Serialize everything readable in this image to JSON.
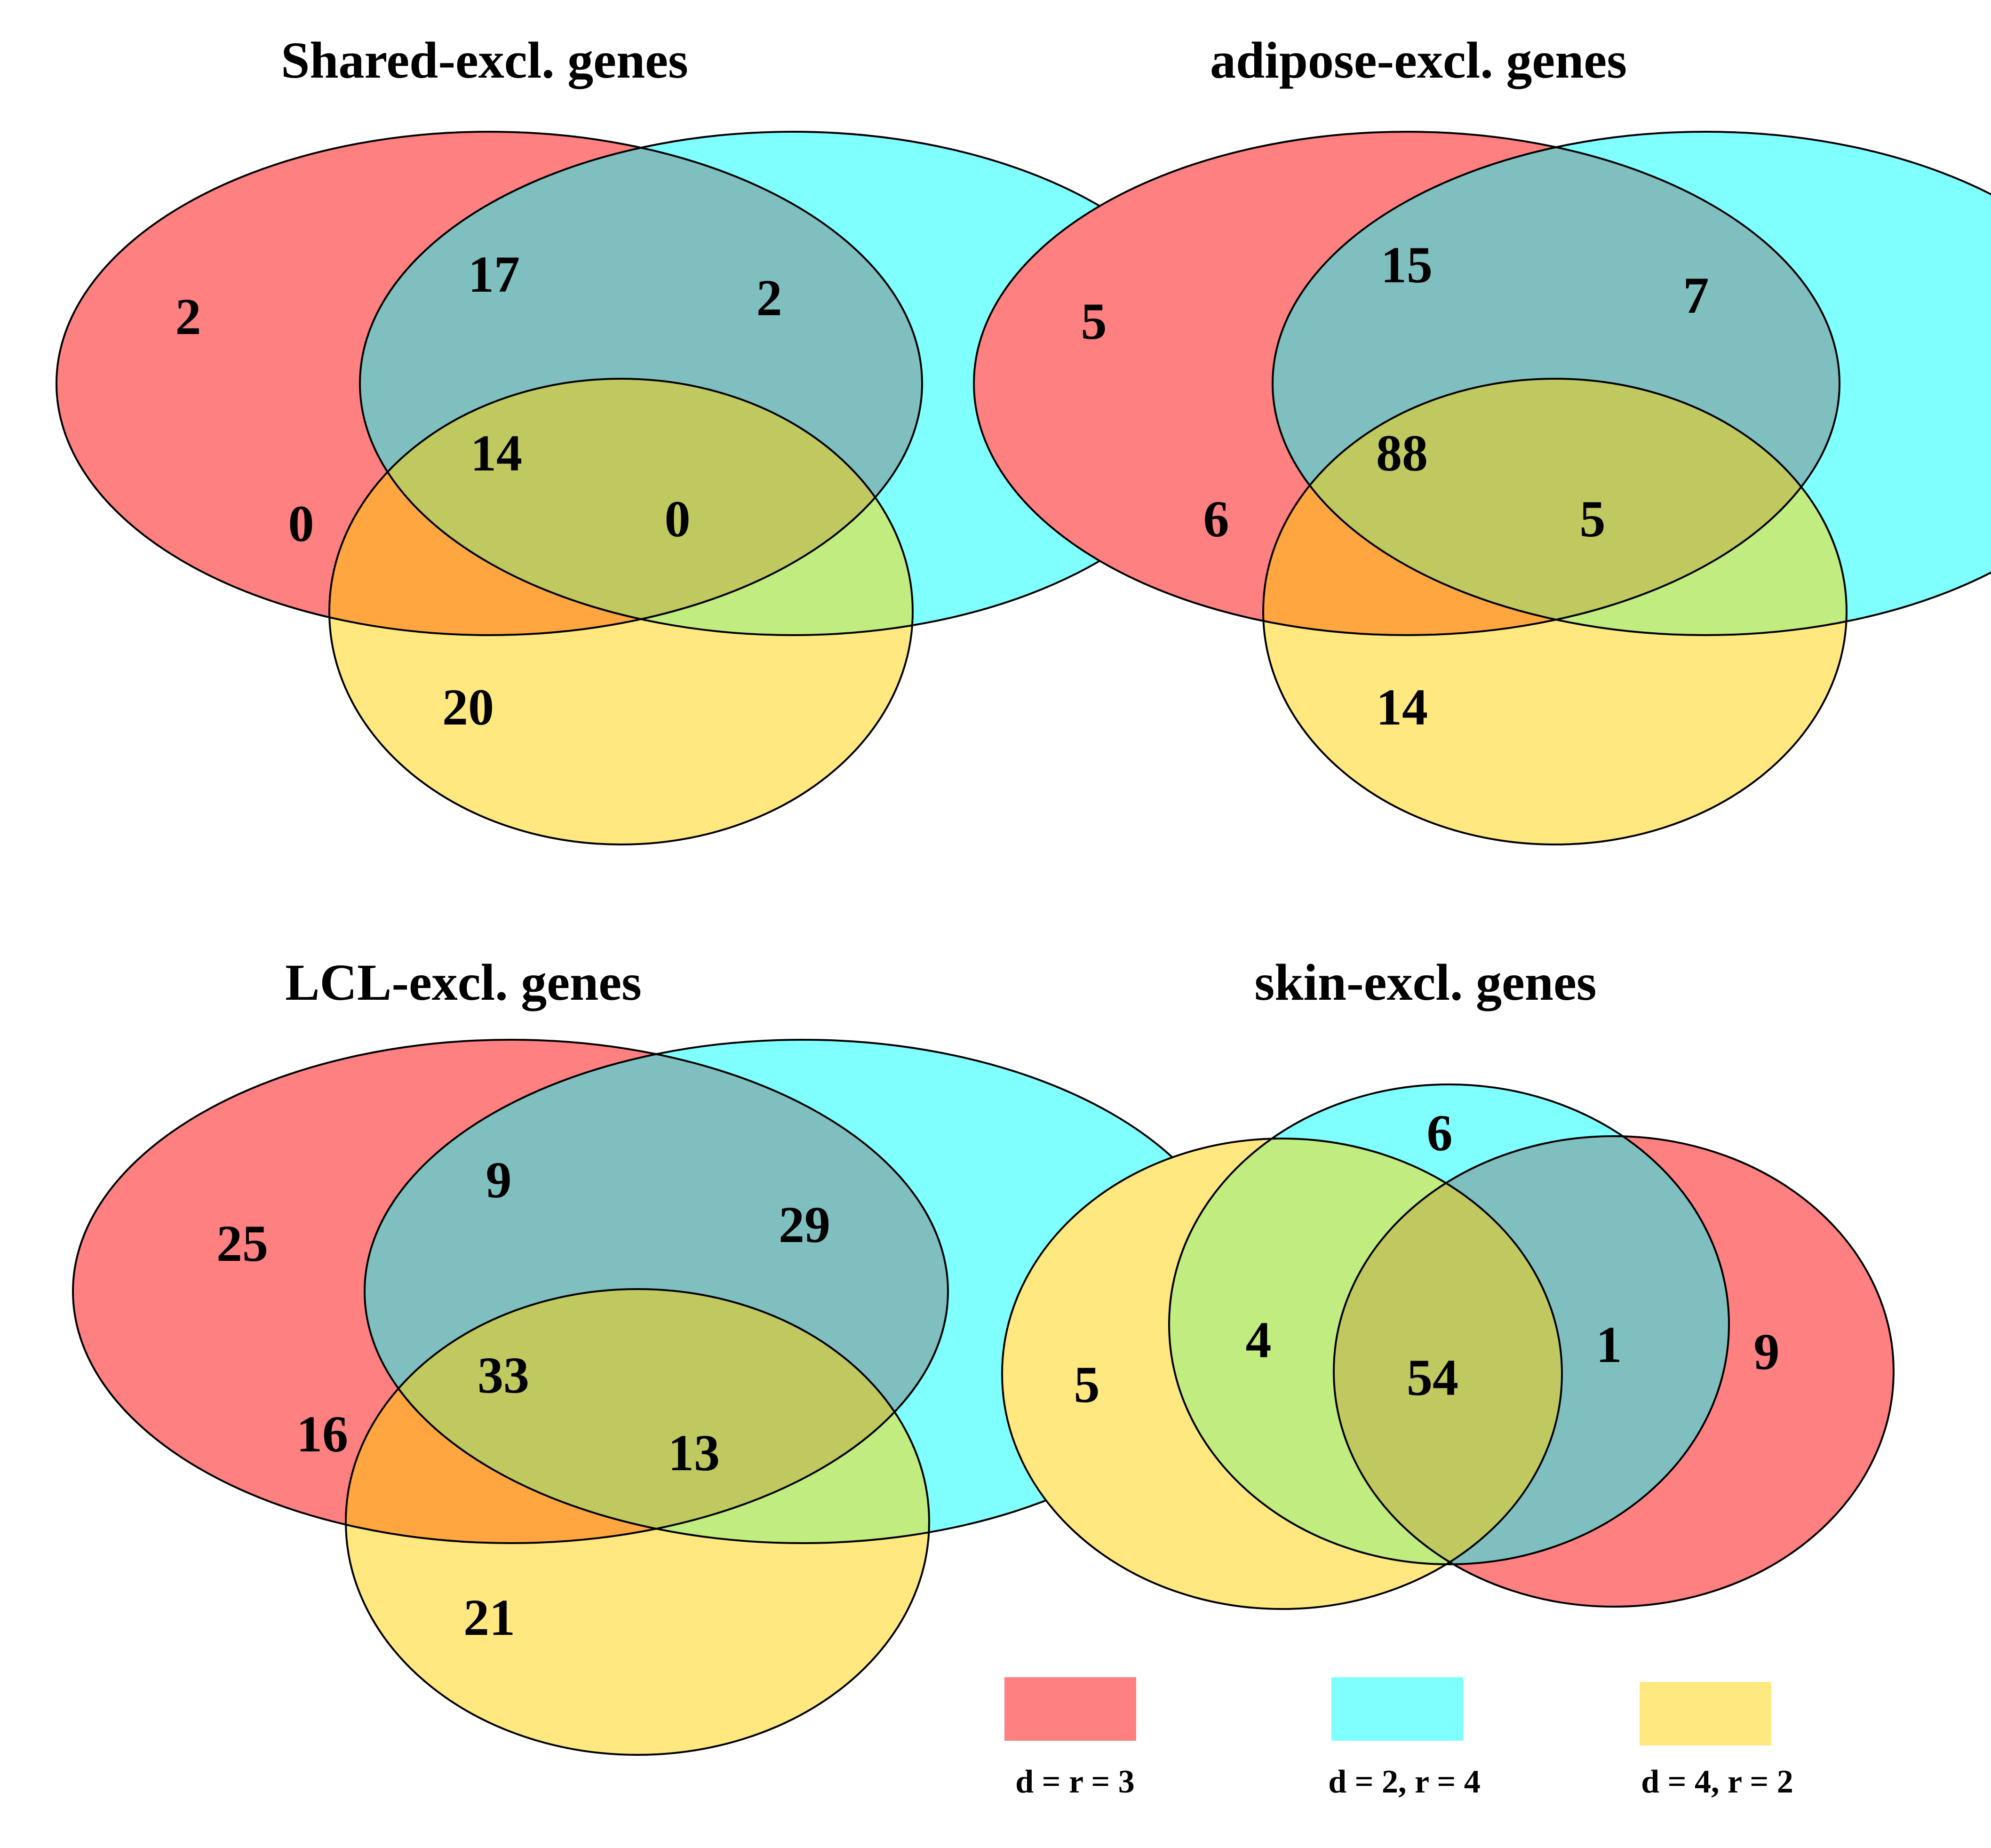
{
  "colors": {
    "red": "#ff8080",
    "cyan": "#80ffff",
    "yellow": "#ffe880",
    "red_cyan": "#80bfbf",
    "red_yellow": "#ffa640",
    "cyan_yellow": "#c0ec80",
    "all": "#c0c860"
  },
  "legend": [
    {
      "color": "red",
      "label": "d = r = 3"
    },
    {
      "color": "cyan",
      "label": "d = 2, r = 4"
    },
    {
      "color": "yellow",
      "label": "d = 4, r = 2"
    }
  ],
  "diagrams": [
    {
      "title": "Shared-excl. genes",
      "counts": {
        "red": "2",
        "red_cyan": "17",
        "cyan": "2",
        "all": "14",
        "red_yellow": "0",
        "cyan_yellow": "0",
        "yellow": "20"
      }
    },
    {
      "title": "adipose-excl. genes",
      "counts": {
        "red": "5",
        "red_cyan": "15",
        "cyan": "7",
        "all": "88",
        "red_yellow": "6",
        "cyan_yellow": "5",
        "yellow": "14"
      }
    },
    {
      "title": "LCL-excl. genes",
      "counts": {
        "red": "25",
        "red_cyan": "9",
        "cyan": "29",
        "all": "33",
        "red_yellow": "16",
        "cyan_yellow": "13",
        "yellow": "21"
      }
    },
    {
      "title": "skin-excl. genes",
      "counts": {
        "yellow": "5",
        "cyan_yellow": "4",
        "cyan": "6",
        "all": "54",
        "red_cyan": "1",
        "red": "9"
      }
    }
  ]
}
